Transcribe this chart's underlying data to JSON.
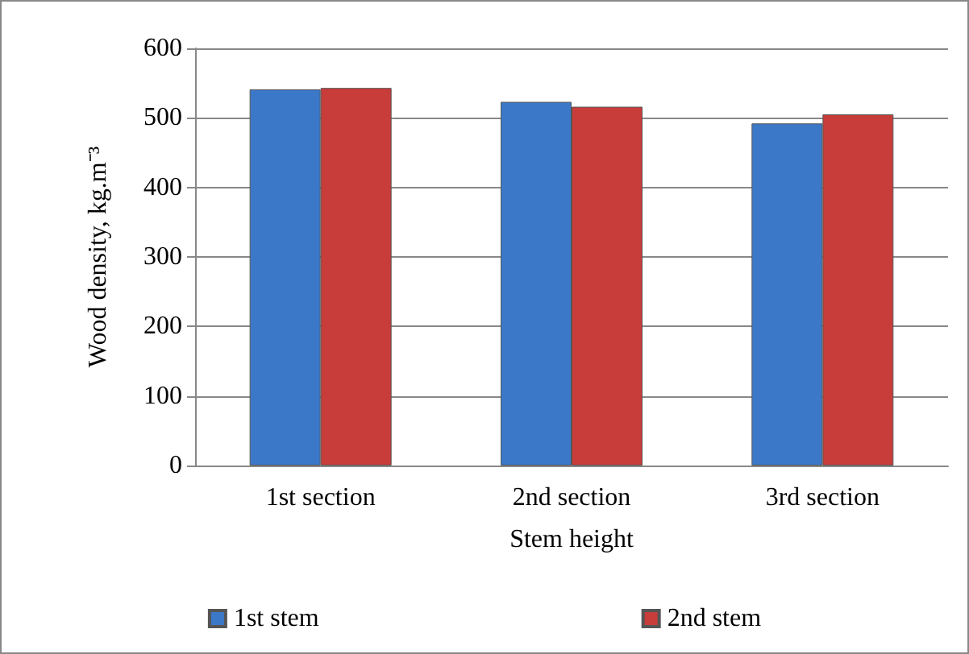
{
  "chart_data": {
    "type": "bar",
    "xlabel": "Stem height",
    "ylabel": "Wood density, kg.m⁻³",
    "categories": [
      "1st section",
      "2nd section",
      "3rd section"
    ],
    "series": [
      {
        "name": "1st stem",
        "color": "#3c78c8",
        "values": [
          541,
          523,
          492
        ]
      },
      {
        "name": "2nd stem",
        "color": "#c83c3a",
        "values": [
          543,
          516,
          505
        ]
      }
    ],
    "ylim": [
      0,
      600
    ],
    "yticks": [
      0,
      100,
      200,
      300,
      400,
      500,
      600
    ],
    "grid": "y",
    "legend": "bottom"
  }
}
